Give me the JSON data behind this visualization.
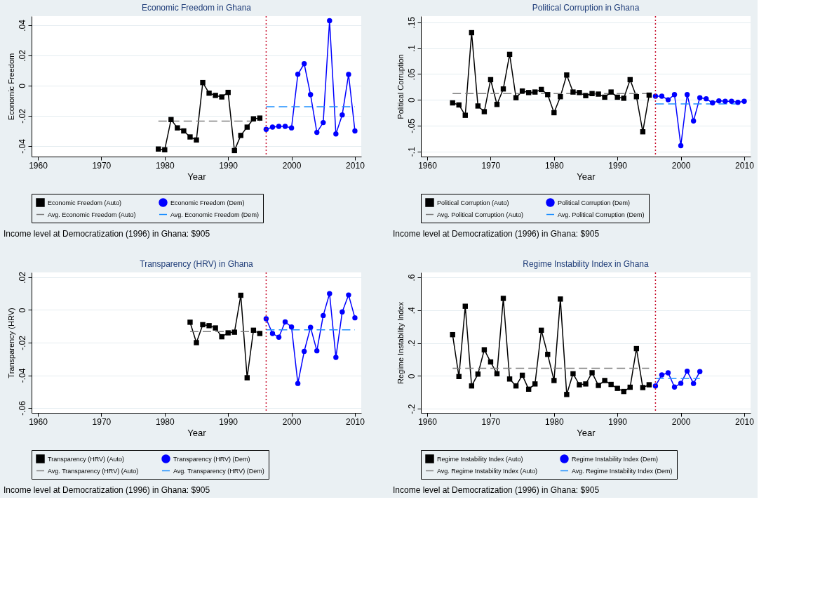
{
  "chart_data": [
    {
      "type": "line",
      "title": "Economic Freedom in Ghana",
      "xlabel": "Year",
      "ylabel": "Economic Freedom",
      "xlim": [
        1959,
        2011
      ],
      "xticks": [
        1960,
        1970,
        1980,
        1990,
        2000,
        2010
      ],
      "ylim": [
        -0.047,
        0.046
      ],
      "yticks": [
        {
          "value": -0.04,
          "label": "-.04"
        },
        {
          "value": -0.02,
          "label": "-.02"
        },
        0,
        {
          "value": 0.02,
          "label": ".02"
        },
        {
          "value": 0.04,
          "label": ".04"
        }
      ],
      "grid": "y",
      "legend": "bottom",
      "series": [
        {
          "name": "Economic Freedom (Auto)",
          "color": "#000000",
          "marker": "square",
          "line_style": "solid",
          "x": [
            1979,
            1980,
            1981,
            1982,
            1983,
            1984,
            1985,
            1986,
            1987,
            1988,
            1989,
            1990,
            1991,
            1992,
            1993,
            1994,
            1995
          ],
          "values": [
            -0.042,
            -0.0425,
            -0.0225,
            -0.028,
            -0.03,
            -0.034,
            -0.036,
            0.002,
            -0.005,
            -0.0065,
            -0.0075,
            -0.0045,
            -0.043,
            -0.033,
            -0.0275,
            -0.022,
            -0.0215
          ]
        },
        {
          "name": "Economic Freedom (Dem)",
          "color": "#0000ff",
          "marker": "circle",
          "line_style": "solid",
          "x": [
            1996,
            1997,
            1998,
            1999,
            2000,
            2001,
            2002,
            2003,
            2004,
            2005,
            2006,
            2007,
            2008,
            2009,
            2010
          ],
          "values": [
            -0.029,
            -0.0275,
            -0.027,
            -0.027,
            -0.028,
            0.0075,
            0.0145,
            -0.006,
            -0.031,
            -0.0245,
            0.043,
            -0.032,
            -0.0194,
            0.0074,
            -0.03
          ]
        },
        {
          "name": "Avg. Economic Freedom (Auto)",
          "color": "#808080",
          "marker": "none",
          "line_style": "dashed",
          "x": [
            1979,
            1995
          ],
          "values": [
            -0.0235,
            -0.0235
          ]
        },
        {
          "name": "Avg. Economic Freedom (Dem)",
          "color": "#1e90ff",
          "marker": "none",
          "line_style": "dashed",
          "x": [
            1996,
            2010
          ],
          "values": [
            -0.014,
            -0.014
          ]
        }
      ],
      "ref_lines": [
        {
          "axis": "x",
          "value": 1996,
          "color": "#c8102e",
          "line_style": "dotted"
        }
      ],
      "annotations": [
        "Income level at Democratization (1996) in Ghana: $905"
      ]
    },
    {
      "type": "line",
      "title": "Political Corruption in Ghana",
      "xlabel": "Year",
      "ylabel": "Political Corruption",
      "xlim": [
        1959,
        2011
      ],
      "xticks": [
        1960,
        1970,
        1980,
        1990,
        2000,
        2010
      ],
      "ylim": [
        -0.11,
        0.162
      ],
      "yticks": [
        {
          "value": -0.1,
          "label": "-.1"
        },
        {
          "value": -0.05,
          "label": "-.05"
        },
        0,
        {
          "value": 0.05,
          "label": ".05"
        },
        {
          "value": 0.1,
          "label": ".1"
        },
        {
          "value": 0.15,
          "label": ".15"
        }
      ],
      "grid": "y",
      "legend": "bottom",
      "series": [
        {
          "name": "Political Corruption (Auto)",
          "color": "#000000",
          "marker": "square",
          "line_style": "solid",
          "x": [
            1964,
            1965,
            1966,
            1967,
            1968,
            1969,
            1970,
            1971,
            1972,
            1973,
            1974,
            1975,
            1976,
            1977,
            1978,
            1979,
            1980,
            1981,
            1982,
            1983,
            1984,
            1985,
            1986,
            1987,
            1988,
            1989,
            1990,
            1991,
            1992,
            1993,
            1994,
            1995
          ],
          "values": [
            -0.006,
            -0.01,
            -0.03,
            0.13,
            -0.012,
            -0.023,
            0.039,
            -0.009,
            0.021,
            0.088,
            0.004,
            0.017,
            0.014,
            0.015,
            0.02,
            0.01,
            -0.025,
            0.006,
            0.048,
            0.015,
            0.014,
            0.008,
            0.012,
            0.011,
            0.005,
            0.015,
            0.005,
            0.003,
            0.039,
            0.006,
            -0.062,
            0.009
          ]
        },
        {
          "name": "Political Corruption (Dem)",
          "color": "#0000ff",
          "marker": "circle",
          "line_style": "solid",
          "x": [
            1996,
            1997,
            1998,
            1999,
            2000,
            2001,
            2002,
            2003,
            2004,
            2005,
            2006,
            2007,
            2008,
            2009,
            2010
          ],
          "values": [
            0.007,
            0.007,
            0.0,
            0.01,
            -0.089,
            0.01,
            -0.041,
            0.004,
            0.002,
            -0.006,
            -0.002,
            -0.003,
            -0.003,
            -0.005,
            -0.003
          ]
        },
        {
          "name": "Avg. Political Corruption (Auto)",
          "color": "#808080",
          "marker": "none",
          "line_style": "dashed",
          "x": [
            1964,
            1995
          ],
          "values": [
            0.012,
            0.012
          ]
        },
        {
          "name": "Avg. Political Corruption (Dem)",
          "color": "#1e90ff",
          "marker": "none",
          "line_style": "dashed",
          "x": [
            1996,
            2010
          ],
          "values": [
            -0.008,
            -0.008
          ]
        }
      ],
      "ref_lines": [
        {
          "axis": "x",
          "value": 1996,
          "color": "#c8102e",
          "line_style": "dotted"
        }
      ],
      "annotations": [
        "Income level at Democratization (1996) in Ghana: $905"
      ]
    },
    {
      "type": "line",
      "title": "Transparency (HRV) in Ghana",
      "xlabel": "Year",
      "ylabel": "Transparency (HRV)",
      "xlim": [
        1959,
        2011
      ],
      "xticks": [
        1960,
        1970,
        1980,
        1990,
        2000,
        2010
      ],
      "ylim": [
        -0.063,
        0.023
      ],
      "yticks": [
        {
          "value": -0.06,
          "label": "-.06"
        },
        {
          "value": -0.04,
          "label": "-.04"
        },
        {
          "value": -0.02,
          "label": "-.02"
        },
        0,
        {
          "value": 0.02,
          "label": ".02"
        }
      ],
      "grid": "y",
      "legend": "bottom",
      "series": [
        {
          "name": "Transparency (HRV) (Auto)",
          "color": "#000000",
          "marker": "square",
          "line_style": "solid",
          "x": [
            1984,
            1985,
            1986,
            1987,
            1988,
            1989,
            1990,
            1991,
            1992,
            1993,
            1994,
            1995
          ],
          "values": [
            -0.0075,
            -0.02,
            -0.009,
            -0.0096,
            -0.011,
            -0.0164,
            -0.014,
            -0.0136,
            0.009,
            -0.0415,
            -0.0124,
            -0.0144
          ]
        },
        {
          "name": "Transparency (HRV) (Dem)",
          "color": "#0000ff",
          "marker": "circle",
          "line_style": "solid",
          "x": [
            1996,
            1997,
            1998,
            1999,
            2000,
            2001,
            2002,
            2003,
            2004,
            2005,
            2006,
            2007,
            2008,
            2009,
            2010
          ],
          "values": [
            -0.0054,
            -0.0144,
            -0.0167,
            -0.0073,
            -0.0104,
            -0.045,
            -0.0254,
            -0.0106,
            -0.025,
            -0.0034,
            0.01,
            -0.029,
            -0.0012,
            0.0092,
            -0.0048
          ]
        },
        {
          "name": "Avg. Transparency (HRV) (Auto)",
          "color": "#808080",
          "marker": "none",
          "line_style": "dashed",
          "x": [
            1984,
            1995
          ],
          "values": [
            -0.0132,
            -0.0132
          ]
        },
        {
          "name": "Avg. Transparency (HRV) (Dem)",
          "color": "#1e90ff",
          "marker": "none",
          "line_style": "dashed",
          "x": [
            1996,
            2010
          ],
          "values": [
            -0.0121,
            -0.0121
          ]
        }
      ],
      "ref_lines": [
        {
          "axis": "x",
          "value": 1996,
          "color": "#c8102e",
          "line_style": "dotted"
        }
      ],
      "annotations": [
        "Income level at Democratization (1996) in Ghana: $905"
      ]
    },
    {
      "type": "line",
      "title": "Regime Instability Index in Ghana",
      "xlabel": "Year",
      "ylabel": "Regime Instability Index",
      "xlim": [
        1959,
        2011
      ],
      "xticks": [
        1960,
        1970,
        1980,
        1990,
        2000,
        2010
      ],
      "ylim": [
        -0.225,
        0.63
      ],
      "yticks": [
        {
          "value": -0.2,
          "label": "-.2"
        },
        0,
        {
          "value": 0.2,
          "label": ".2"
        },
        {
          "value": 0.4,
          "label": ".4"
        },
        {
          "value": 0.6,
          "label": ".6"
        }
      ],
      "grid": "y",
      "legend": "bottom",
      "series": [
        {
          "name": "Regime Instability Index (Auto)",
          "color": "#000000",
          "marker": "square",
          "line_style": "solid",
          "x": [
            1964,
            1965,
            1966,
            1967,
            1968,
            1969,
            1970,
            1971,
            1972,
            1973,
            1974,
            1975,
            1976,
            1977,
            1978,
            1979,
            1980,
            1981,
            1982,
            1983,
            1984,
            1985,
            1986,
            1987,
            1988,
            1989,
            1990,
            1991,
            1992,
            1993,
            1994,
            1995
          ],
          "values": [
            0.251,
            -0.004,
            0.424,
            -0.061,
            0.011,
            0.159,
            0.085,
            0.013,
            0.472,
            -0.019,
            -0.061,
            0.004,
            -0.081,
            -0.049,
            0.278,
            0.131,
            -0.028,
            0.468,
            -0.113,
            0.013,
            -0.054,
            -0.049,
            0.019,
            -0.058,
            -0.028,
            -0.052,
            -0.076,
            -0.095,
            -0.069,
            0.166,
            -0.071,
            -0.054
          ]
        },
        {
          "name": "Regime Instability Index (Dem)",
          "color": "#0000ff",
          "marker": "circle",
          "line_style": "solid",
          "x": [
            1996,
            1997,
            1998,
            1999,
            2000,
            2001,
            2002,
            2003
          ],
          "values": [
            -0.061,
            0.006,
            0.019,
            -0.068,
            -0.045,
            0.029,
            -0.046,
            0.026
          ]
        },
        {
          "name": "Avg. Regime Instability Index (Auto)",
          "color": "#808080",
          "marker": "none",
          "line_style": "dashed",
          "x": [
            1964,
            1995
          ],
          "values": [
            0.046,
            0.046
          ]
        },
        {
          "name": "Avg. Regime Instability Index (Dem)",
          "color": "#1e90ff",
          "marker": "none",
          "line_style": "dashed",
          "x": [
            1996,
            2003
          ],
          "values": [
            -0.016,
            -0.016
          ]
        }
      ],
      "ref_lines": [
        {
          "axis": "x",
          "value": 1996,
          "color": "#c8102e",
          "line_style": "dotted"
        }
      ],
      "annotations": [
        "Income level at Democratization (1996) in Ghana: $905"
      ]
    }
  ]
}
